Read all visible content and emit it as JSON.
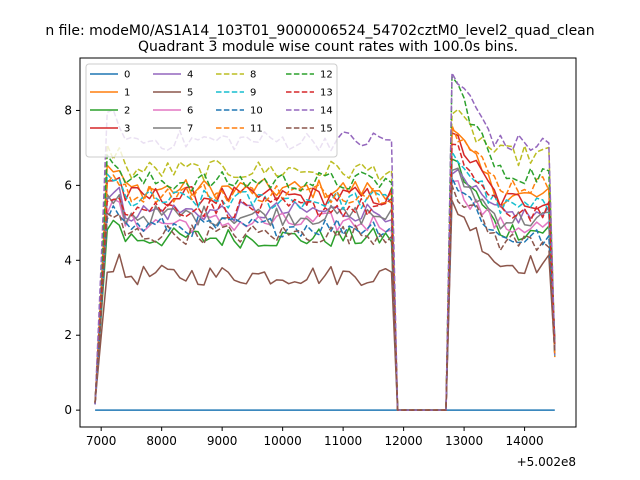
{
  "chart_data": {
    "type": "line",
    "suptitle": "n file: modeM0/AS1A14_103T01_9000006524_54702cztM0_level2_quad_clean",
    "title": "Quadrant 3 module wise count rates with 100.0s bins.",
    "xlabel": "",
    "ylabel": "",
    "x_offset_label": "+5.002e8",
    "xlim": [
      6650,
      14850
    ],
    "ylim": [
      -0.45,
      9.4
    ],
    "xticks": [
      7000,
      8000,
      9000,
      10000,
      11000,
      12000,
      13000,
      14000
    ],
    "yticks": [
      0,
      2,
      4,
      6,
      8
    ],
    "grid": false,
    "legend": {
      "position": "top-left",
      "ncol": 4
    },
    "segments": {
      "t1_start": 6900,
      "t1_end": 11800,
      "gap_start": 11900,
      "gap_end": 12700,
      "t2_start": 12800,
      "t2_end": 14500,
      "step": 100
    },
    "series": [
      {
        "name": "0",
        "color": "#1f77b4",
        "style": "solid",
        "level": 0.0,
        "peak": 0.0,
        "t2": 0.0
      },
      {
        "name": "1",
        "color": "#ff7f0e",
        "style": "solid",
        "level": 5.9,
        "peak": 7.5,
        "t2": 5.7
      },
      {
        "name": "2",
        "color": "#2ca02c",
        "style": "solid",
        "level": 4.6,
        "peak": 6.7,
        "t2": 4.8
      },
      {
        "name": "3",
        "color": "#d62728",
        "style": "solid",
        "level": 5.7,
        "peak": 7.4,
        "t2": 5.6
      },
      {
        "name": "4",
        "color": "#9467bd",
        "style": "solid",
        "level": 5.3,
        "peak": 6.3,
        "t2": 5.2
      },
      {
        "name": "5",
        "color": "#8c564b",
        "style": "solid",
        "level": 3.6,
        "peak": 5.6,
        "t2": 3.9
      },
      {
        "name": "6",
        "color": "#e377c2",
        "style": "solid",
        "level": 5.0,
        "peak": 6.1,
        "t2": 4.9
      },
      {
        "name": "7",
        "color": "#7f7f7f",
        "style": "solid",
        "level": 5.2,
        "peak": 6.4,
        "t2": 5.1
      },
      {
        "name": "8",
        "color": "#bcbd22",
        "style": "dashed",
        "level": 6.4,
        "peak": 7.9,
        "t2": 6.8
      },
      {
        "name": "9",
        "color": "#17becf",
        "style": "dashed",
        "level": 5.6,
        "peak": 6.9,
        "t2": 5.4
      },
      {
        "name": "10",
        "color": "#1f77b4",
        "style": "dashed",
        "level": 4.9,
        "peak": 6.2,
        "t2": 4.6
      },
      {
        "name": "11",
        "color": "#ff7f0e",
        "style": "dashed",
        "level": 5.8,
        "peak": 7.6,
        "t2": 6.0
      },
      {
        "name": "12",
        "color": "#2ca02c",
        "style": "dashed",
        "level": 6.1,
        "peak": 8.9,
        "t2": 6.3
      },
      {
        "name": "13",
        "color": "#d62728",
        "style": "dashed",
        "level": 5.4,
        "peak": 7.1,
        "t2": 5.3
      },
      {
        "name": "14",
        "color": "#9467bd",
        "style": "dashed",
        "level": 7.2,
        "peak": 9.0,
        "t2": 7.1
      },
      {
        "name": "15",
        "color": "#8c564b",
        "style": "dashed",
        "level": 4.7,
        "peak": 6.0,
        "t2": 4.5
      }
    ]
  }
}
